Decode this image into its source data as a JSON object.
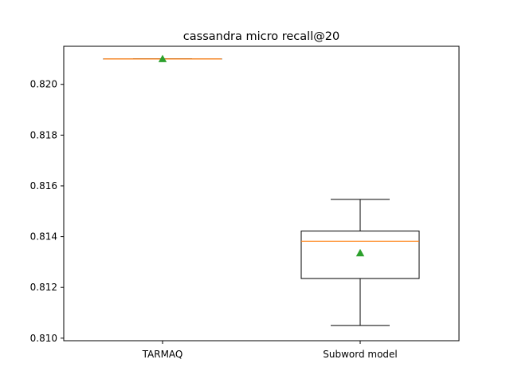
{
  "chart_data": {
    "type": "box",
    "title": "cassandra micro recall@20",
    "xlabel": "",
    "ylabel": "",
    "categories": [
      "TARMAQ",
      "Subword model"
    ],
    "ylim": [
      0.8099,
      0.8215
    ],
    "yticks": [
      0.81,
      0.812,
      0.814,
      0.816,
      0.818,
      0.82
    ],
    "ytick_labels": [
      "0.810",
      "0.812",
      "0.814",
      "0.816",
      "0.818",
      "0.820"
    ],
    "boxes": [
      {
        "name": "TARMAQ",
        "whisker_low": 0.821,
        "q1": 0.821,
        "median": 0.821,
        "q3": 0.821,
        "whisker_high": 0.821,
        "mean": 0.821
      },
      {
        "name": "Subword model",
        "whisker_low": 0.8105,
        "q1": 0.81235,
        "median": 0.81382,
        "q3": 0.81422,
        "whisker_high": 0.81547,
        "mean": 0.81335
      }
    ],
    "grid": false,
    "colors": {
      "box": "#000000",
      "median": "#ff7f0e",
      "mean": "#2ca02c"
    }
  }
}
